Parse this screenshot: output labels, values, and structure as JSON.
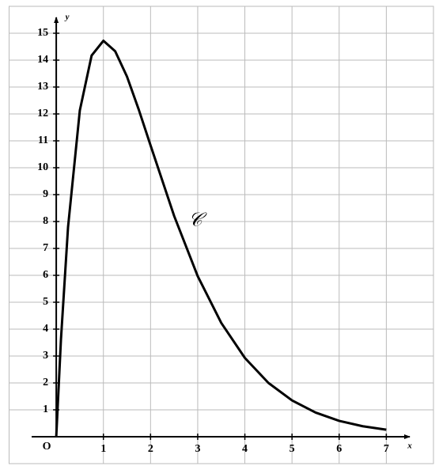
{
  "chart_data": {
    "type": "line",
    "x_label": "x",
    "y_label": "y",
    "origin_label": "O",
    "curve_label": "𝒞",
    "x": [
      0,
      0.1,
      0.25,
      0.5,
      0.75,
      1,
      1.25,
      1.5,
      1.75,
      2,
      2.5,
      3,
      3.5,
      4,
      4.5,
      5,
      5.5,
      6,
      6.5,
      7
    ],
    "series": [
      {
        "name": "𝒞",
        "color": "#000000",
        "values": [
          0,
          3.62,
          7.79,
          12.13,
          14.17,
          14.72,
          14.33,
          13.39,
          12.16,
          10.83,
          8.21,
          5.97,
          4.23,
          2.93,
          2.0,
          1.35,
          0.9,
          0.59,
          0.39,
          0.26
        ]
      }
    ],
    "xlim": [
      -1,
      8
    ],
    "ylim": [
      -1,
      16
    ],
    "xticks": [
      1,
      2,
      3,
      4,
      5,
      6,
      7
    ],
    "yticks": [
      1,
      2,
      3,
      4,
      5,
      6,
      7,
      8,
      9,
      10,
      11,
      12,
      13,
      14,
      15
    ],
    "grid": true
  }
}
